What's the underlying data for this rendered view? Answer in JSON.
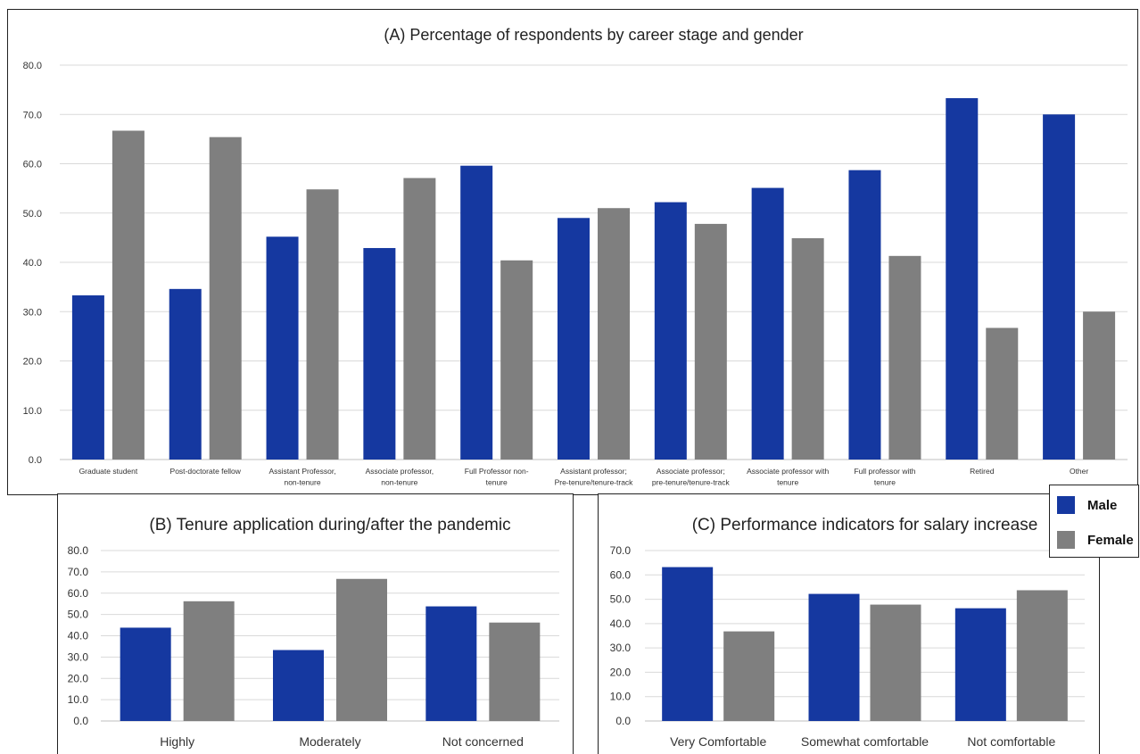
{
  "colors": {
    "male": "#1538A0",
    "female": "#7F7F7F",
    "grid": "#D9D9D9",
    "axis_text": "#333333"
  },
  "legend": {
    "male_label": "Male",
    "female_label": "Female"
  },
  "chart_data": [
    {
      "id": "A",
      "type": "bar",
      "title": "(A) Percentage of respondents by career stage and gender",
      "xlabel": "",
      "ylabel": "",
      "ylim": [
        0,
        80
      ],
      "yticks": [
        "0.0",
        "10.0",
        "20.0",
        "30.0",
        "40.0",
        "50.0",
        "60.0",
        "70.0",
        "80.0"
      ],
      "grid": true,
      "legend_position": "bottom-right",
      "categories": [
        [
          "Graduate student"
        ],
        [
          "Post-doctorate fellow"
        ],
        [
          "Assistant Professor,",
          "non-tenure"
        ],
        [
          "Associate professor,",
          "non-tenure"
        ],
        [
          "Full Professor non-",
          "tenure"
        ],
        [
          "Assistant professor;",
          "Pre-tenure/tenure-track"
        ],
        [
          "Associate professor;",
          "pre-tenure/tenure-track"
        ],
        [
          "Associate professor with",
          "tenure"
        ],
        [
          "Full professor with",
          "tenure"
        ],
        [
          "Retired"
        ],
        [
          "Other"
        ]
      ],
      "series": [
        {
          "name": "Male",
          "values": [
            33.3,
            34.6,
            45.2,
            42.9,
            59.6,
            49.0,
            52.2,
            55.1,
            58.7,
            73.3,
            70.0
          ]
        },
        {
          "name": "Female",
          "values": [
            66.7,
            65.4,
            54.8,
            57.1,
            40.4,
            51.0,
            47.8,
            44.9,
            41.3,
            26.7,
            30.0
          ]
        }
      ]
    },
    {
      "id": "B",
      "type": "bar",
      "title": "(B) Tenure application during/after the pandemic",
      "xlabel": "",
      "ylabel": "",
      "ylim": [
        0,
        80
      ],
      "yticks": [
        "0.0",
        "10.0",
        "20.0",
        "30.0",
        "40.0",
        "50.0",
        "60.0",
        "70.0",
        "80.0"
      ],
      "grid": true,
      "categories": [
        [
          "Highly"
        ],
        [
          "Moderately"
        ],
        [
          "Not concerned"
        ]
      ],
      "series": [
        {
          "name": "Male",
          "values": [
            43.8,
            33.3,
            53.8
          ]
        },
        {
          "name": "Female",
          "values": [
            56.2,
            66.7,
            46.2
          ]
        }
      ]
    },
    {
      "id": "C",
      "type": "bar",
      "title": "(C) Performance indicators for salary increase",
      "xlabel": "",
      "ylabel": "",
      "ylim": [
        0,
        70
      ],
      "yticks": [
        "0.0",
        "10.0",
        "20.0",
        "30.0",
        "40.0",
        "50.0",
        "60.0",
        "70.0"
      ],
      "grid": true,
      "categories": [
        [
          "Very Comfortable"
        ],
        [
          "Somewhat comfortable"
        ],
        [
          "Not comfortable"
        ]
      ],
      "series": [
        {
          "name": "Male",
          "values": [
            63.2,
            52.2,
            46.3
          ]
        },
        {
          "name": "Female",
          "values": [
            36.8,
            47.8,
            53.7
          ]
        }
      ]
    }
  ]
}
